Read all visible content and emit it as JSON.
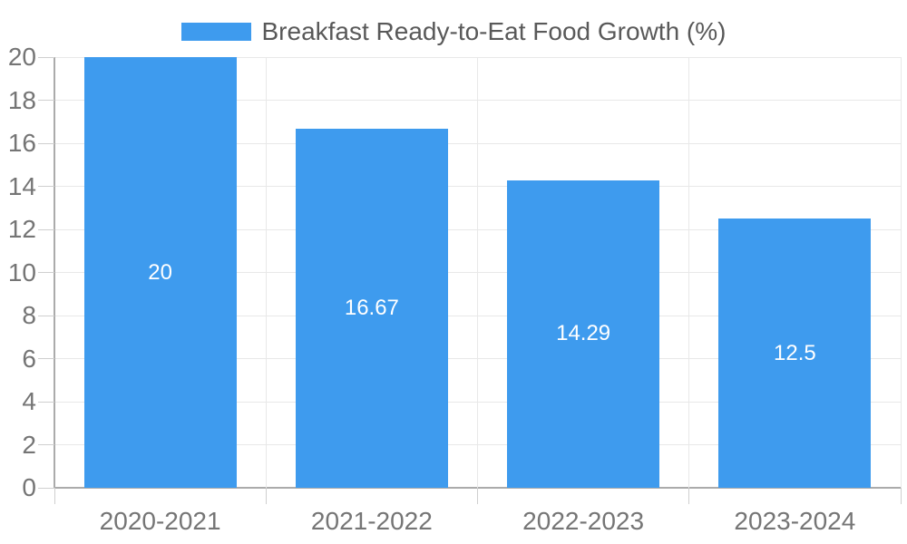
{
  "chart_data": {
    "type": "bar",
    "title": "Breakfast Ready-to-Eat Food Growth (%)",
    "categories": [
      "2020-2021",
      "2021-2022",
      "2022-2023",
      "2023-2024"
    ],
    "values": [
      20,
      16.67,
      14.29,
      12.5
    ],
    "value_labels": [
      "20",
      "16.67",
      "14.29",
      "12.5"
    ],
    "xlabel": "",
    "ylabel": "",
    "ylim": [
      0,
      20
    ],
    "ytick_step": 2,
    "yticks": [
      0,
      2,
      4,
      6,
      8,
      10,
      12,
      14,
      16,
      18,
      20
    ],
    "grid": true,
    "legend_position": "top-center",
    "bar_color": "#3E9BEE",
    "value_label_color": "#FFFFFF"
  },
  "colors": {
    "background": "#FFFFFF",
    "bar": "#3E9BEE",
    "gridline": "#E8E8E8",
    "axis_line": "#ABABAB",
    "tick_mark": "#CFCFCF",
    "tick_label_text": "#757575",
    "legend_text": "#595959"
  }
}
